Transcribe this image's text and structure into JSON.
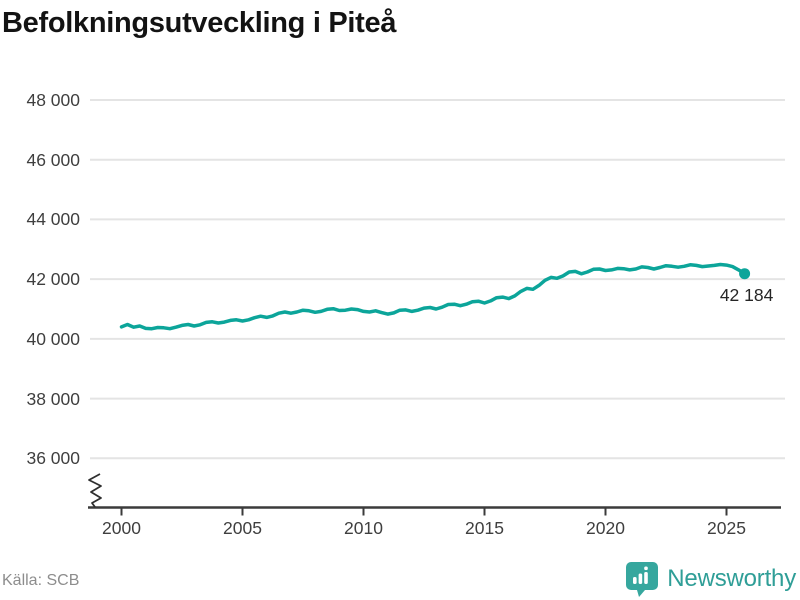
{
  "title": "Befolkningsutveckling i Piteå",
  "footer": {
    "source": "Källa: SCB",
    "brand": "Newsworthy",
    "brand_icon": "newsworthy-bubble-barchart-icon"
  },
  "colors": {
    "line": "#0ca59a",
    "grid": "#e4e4e4",
    "axis": "#3b3b3b",
    "axis_break": "#2f2f2f",
    "tick_text": "#3f3f3f",
    "title_text": "#131313",
    "source_text": "#8d8d8d",
    "logo_teal": "#36a79e"
  },
  "chart_data": {
    "type": "line",
    "title": "Befolkningsutveckling i Piteå",
    "xlabel": "",
    "ylabel": "",
    "grid": "horizontal",
    "legend": "none",
    "axis_break_bottom": true,
    "ylim": [
      36000,
      48000
    ],
    "xlim": [
      2000,
      2026.5
    ],
    "y_ticks": {
      "values": [
        48000,
        46000,
        44000,
        42000,
        40000,
        38000,
        36000
      ],
      "labels": [
        "48 000",
        "46 000",
        "44 000",
        "42 000",
        "40 000",
        "38 000",
        "36 000"
      ]
    },
    "x_ticks": {
      "values": [
        2000,
        2005,
        2010,
        2015,
        2020,
        2025
      ],
      "labels": [
        "2000",
        "2005",
        "2010",
        "2015",
        "2020",
        "2025"
      ]
    },
    "end_label": "42 184",
    "end_value": 42184,
    "series": [
      {
        "name": "Befolkning i Piteå",
        "points": [
          [
            2000,
            40400
          ],
          [
            2000.25,
            40480
          ],
          [
            2000.5,
            40390
          ],
          [
            2000.75,
            40430
          ],
          [
            2001,
            40350
          ],
          [
            2001.25,
            40340
          ],
          [
            2001.5,
            40380
          ],
          [
            2001.75,
            40370
          ],
          [
            2002,
            40340
          ],
          [
            2002.25,
            40390
          ],
          [
            2002.5,
            40450
          ],
          [
            2002.75,
            40480
          ],
          [
            2003,
            40430
          ],
          [
            2003.25,
            40470
          ],
          [
            2003.5,
            40550
          ],
          [
            2003.75,
            40570
          ],
          [
            2004,
            40530
          ],
          [
            2004.25,
            40560
          ],
          [
            2004.5,
            40620
          ],
          [
            2004.75,
            40640
          ],
          [
            2005,
            40600
          ],
          [
            2005.25,
            40640
          ],
          [
            2005.5,
            40710
          ],
          [
            2005.75,
            40760
          ],
          [
            2006,
            40720
          ],
          [
            2006.25,
            40770
          ],
          [
            2006.5,
            40860
          ],
          [
            2006.75,
            40900
          ],
          [
            2007,
            40860
          ],
          [
            2007.25,
            40900
          ],
          [
            2007.5,
            40960
          ],
          [
            2007.75,
            40940
          ],
          [
            2008,
            40890
          ],
          [
            2008.25,
            40920
          ],
          [
            2008.5,
            40990
          ],
          [
            2008.75,
            41010
          ],
          [
            2009,
            40950
          ],
          [
            2009.25,
            40960
          ],
          [
            2009.5,
            41000
          ],
          [
            2009.75,
            40980
          ],
          [
            2010,
            40920
          ],
          [
            2010.25,
            40900
          ],
          [
            2010.5,
            40940
          ],
          [
            2010.75,
            40880
          ],
          [
            2011,
            40830
          ],
          [
            2011.25,
            40870
          ],
          [
            2011.5,
            40960
          ],
          [
            2011.75,
            40970
          ],
          [
            2012,
            40920
          ],
          [
            2012.25,
            40960
          ],
          [
            2012.5,
            41030
          ],
          [
            2012.75,
            41050
          ],
          [
            2013,
            41000
          ],
          [
            2013.25,
            41060
          ],
          [
            2013.5,
            41150
          ],
          [
            2013.75,
            41160
          ],
          [
            2014,
            41110
          ],
          [
            2014.25,
            41160
          ],
          [
            2014.5,
            41240
          ],
          [
            2014.75,
            41260
          ],
          [
            2015,
            41200
          ],
          [
            2015.25,
            41270
          ],
          [
            2015.5,
            41380
          ],
          [
            2015.75,
            41400
          ],
          [
            2016,
            41350
          ],
          [
            2016.25,
            41440
          ],
          [
            2016.5,
            41590
          ],
          [
            2016.75,
            41690
          ],
          [
            2017,
            41660
          ],
          [
            2017.25,
            41790
          ],
          [
            2017.5,
            41960
          ],
          [
            2017.75,
            42060
          ],
          [
            2018,
            42030
          ],
          [
            2018.25,
            42110
          ],
          [
            2018.5,
            42240
          ],
          [
            2018.75,
            42260
          ],
          [
            2019,
            42180
          ],
          [
            2019.25,
            42240
          ],
          [
            2019.5,
            42330
          ],
          [
            2019.75,
            42340
          ],
          [
            2020,
            42290
          ],
          [
            2020.25,
            42310
          ],
          [
            2020.5,
            42360
          ],
          [
            2020.75,
            42350
          ],
          [
            2021,
            42310
          ],
          [
            2021.25,
            42340
          ],
          [
            2021.5,
            42410
          ],
          [
            2021.75,
            42390
          ],
          [
            2022,
            42340
          ],
          [
            2022.25,
            42390
          ],
          [
            2022.5,
            42450
          ],
          [
            2022.75,
            42430
          ],
          [
            2023,
            42400
          ],
          [
            2023.25,
            42430
          ],
          [
            2023.5,
            42480
          ],
          [
            2023.75,
            42460
          ],
          [
            2024,
            42420
          ],
          [
            2024.25,
            42440
          ],
          [
            2024.5,
            42460
          ],
          [
            2024.75,
            42490
          ],
          [
            2025,
            42470
          ],
          [
            2025.25,
            42420
          ],
          [
            2025.5,
            42310
          ],
          [
            2025.75,
            42184
          ]
        ]
      }
    ]
  }
}
